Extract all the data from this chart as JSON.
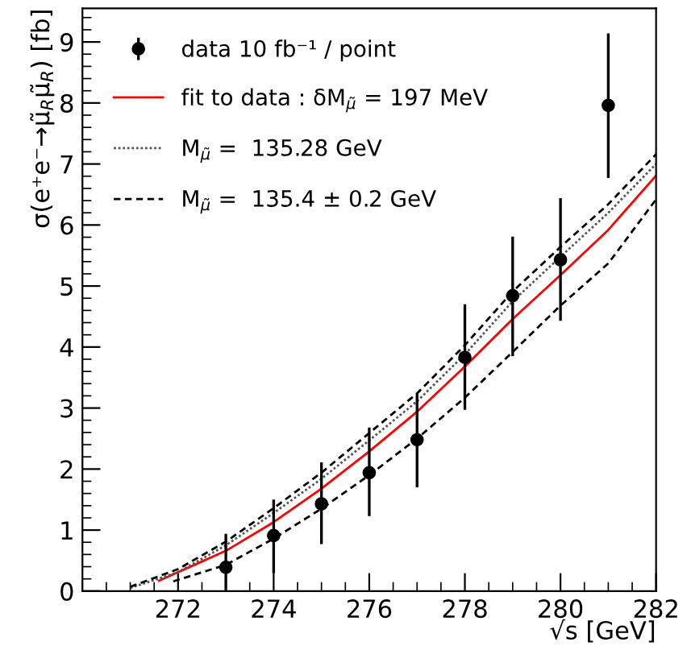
{
  "chart_data": {
    "type": "line",
    "xlabel": "√s [GeV]",
    "ylabel": "σ(e⁺e⁻→μ̃$_{R}$μ̃$_{R}$) [fb]",
    "xlim": [
      270,
      282
    ],
    "xticks": [
      272,
      274,
      276,
      278,
      280,
      282
    ],
    "ylim": [
      0,
      9.55
    ],
    "yticks": [
      0,
      1,
      2,
      3,
      4,
      5,
      6,
      7,
      8,
      9
    ],
    "grid": false,
    "legend": "top left",
    "series": [
      {
        "name": "data 10 fb⁻¹ / point",
        "type": "scatter",
        "marker": "circle",
        "color": "#000000",
        "x": [
          273,
          274,
          275,
          276,
          277,
          278,
          279,
          280,
          281
        ],
        "values": [
          0.39,
          0.91,
          1.43,
          1.94,
          2.48,
          3.83,
          4.84,
          5.43,
          7.96
        ],
        "errors": [
          [
            0,
            0.94
          ],
          [
            0.29,
            1.5
          ],
          [
            0.77,
            2.11
          ],
          [
            1.23,
            2.68
          ],
          [
            1.7,
            3.23
          ],
          [
            2.97,
            4.7
          ],
          [
            3.85,
            5.81
          ],
          [
            4.43,
            6.44
          ],
          [
            6.77,
            9.14
          ]
        ]
      },
      {
        "name": "fit to data : δM$_{μ̃}$ = 197 MeV",
        "color": "#ff0000",
        "line_style": "solid",
        "x": [
          271.6,
          273,
          274,
          275,
          276,
          277,
          278,
          279,
          280,
          281,
          282
        ],
        "values": [
          0.17,
          0.66,
          1.13,
          1.68,
          2.29,
          2.94,
          3.68,
          4.46,
          5.18,
          5.92,
          6.81
        ]
      },
      {
        "name": "M$_{μ̃}$ =  135.28 GeV",
        "color": "#555555",
        "line_style": "dotted",
        "x": [
          271.0,
          272,
          273,
          274,
          275,
          276,
          277,
          278,
          279,
          280,
          281,
          282
        ],
        "values": [
          0.05,
          0.31,
          0.75,
          1.28,
          1.84,
          2.47,
          3.11,
          3.88,
          4.75,
          5.48,
          6.2,
          7.0
        ]
      },
      {
        "name": "M$_{μ̃}$ =  135.4 ± 0.2 GeV",
        "color": "#000000",
        "line_style": "dashed",
        "x": [
          271.0,
          272,
          273,
          274,
          275,
          276,
          277,
          278,
          279,
          280,
          281,
          282
        ],
        "values": [
          0.07,
          0.36,
          0.81,
          1.36,
          1.94,
          2.59,
          3.24,
          4.03,
          4.91,
          5.64,
          6.34,
          7.16
        ]
      },
      {
        "color": "#000000",
        "line_style": "dashed",
        "x": [
          271.9,
          273,
          274,
          275,
          276,
          277,
          278,
          279,
          280,
          281,
          282
        ],
        "values": [
          0.16,
          0.43,
          0.86,
          1.35,
          1.9,
          2.5,
          3.17,
          3.92,
          4.68,
          5.37,
          6.42
        ]
      }
    ]
  }
}
